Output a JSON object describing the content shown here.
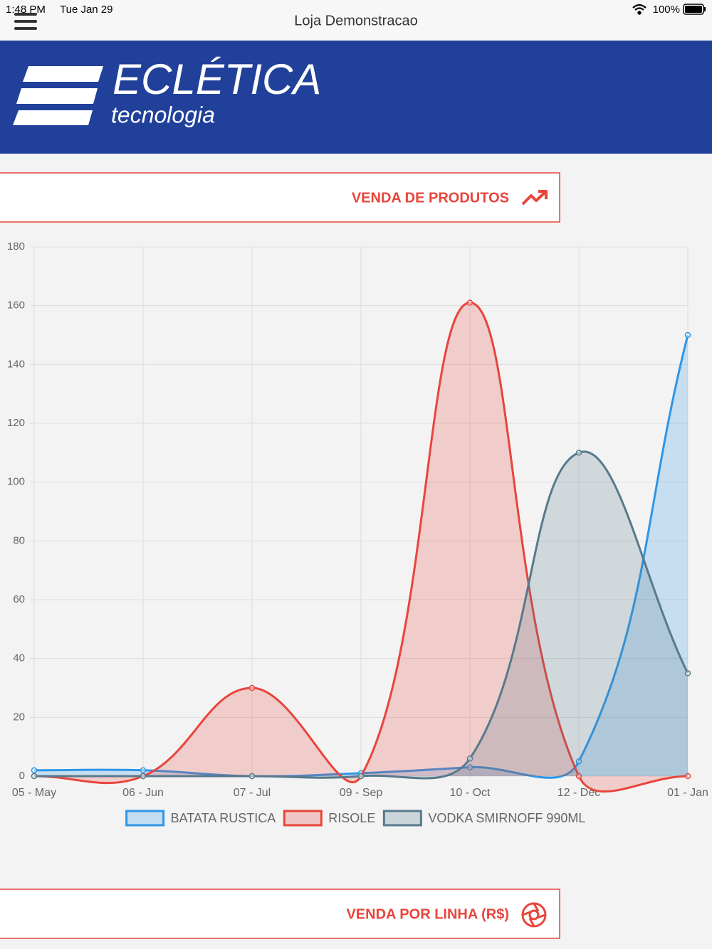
{
  "status_bar": {
    "time": "1:48 PM",
    "date": "Tue Jan 29",
    "battery": "100%"
  },
  "nav": {
    "title": "Loja Demonstracao"
  },
  "logo": {
    "name": "ECLÉTICA",
    "tagline": "tecnologia"
  },
  "sections": [
    {
      "title": "VENDA DE PRODUTOS"
    },
    {
      "title": "VENDA POR LINHA (R$)"
    }
  ],
  "chart_data": {
    "type": "line",
    "categories": [
      "05 - May",
      "06 - Jun",
      "07 - Jul",
      "09 - Sep",
      "10 - Oct",
      "12 - Dec",
      "01 - Jan"
    ],
    "series": [
      {
        "name": "BATATA RUSTICA",
        "color": "#2f96e6",
        "values": [
          2,
          2,
          0,
          1,
          3,
          5,
          150
        ]
      },
      {
        "name": "RISOLE",
        "color": "#e8453c",
        "values": [
          0,
          0,
          30,
          0,
          161,
          0,
          0
        ]
      },
      {
        "name": "VODKA SMIRNOFF 990ML",
        "color": "#587a8c",
        "values": [
          0,
          0,
          0,
          0,
          6,
          110,
          35
        ]
      }
    ],
    "ylim": [
      0,
      180
    ],
    "yticks": [
      0,
      20,
      40,
      60,
      80,
      100,
      120,
      140,
      160,
      180
    ],
    "grid": true,
    "fill": true,
    "smooth": true,
    "legend": "bottom"
  }
}
